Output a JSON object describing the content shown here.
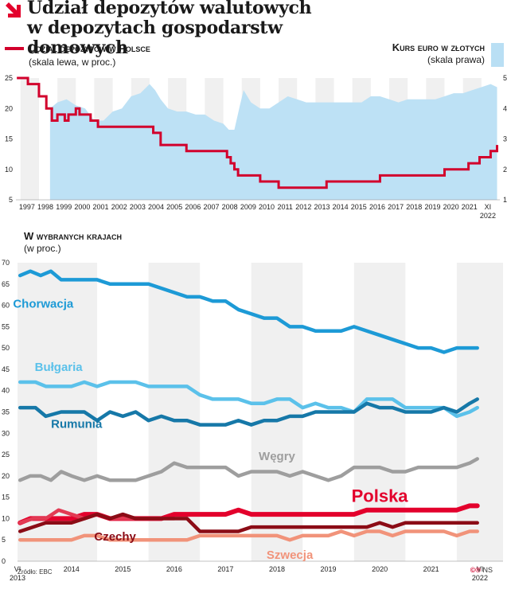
{
  "header": {
    "title_line1": "Udział depozytów walutowych",
    "title_line2": "w depozytach gospodarstw domowych"
  },
  "legend": {
    "left_title": "Udział depozytów w Polsce",
    "left_sub": "(skala lewa, w proc.)",
    "right_title": "Kurs euro w złotych",
    "right_sub": "(skala prawa)"
  },
  "section2": {
    "title": "W wybranych krajach",
    "sub": "(w proc.)"
  },
  "footer": {
    "source": "Źródło: EBC",
    "copyright": "©℗",
    "author": "NS"
  },
  "chart_data": [
    {
      "type": "line+area",
      "title": "Udział depozytów w Polsce vs kurs euro w złotych",
      "ylim_left": [
        5,
        25
      ],
      "yticks_left": [
        "5",
        "10",
        "15",
        "20",
        "25"
      ],
      "ylim_right": [
        1,
        5
      ],
      "yticks_right": [
        "1",
        "2",
        "3",
        "4",
        "5"
      ],
      "xlim": [
        1996.75,
        2023.0
      ],
      "xticks": [
        "1997",
        "1998",
        "1999",
        "2000",
        "2001",
        "2002",
        "2003",
        "2004",
        "2005",
        "2006",
        "2007",
        "2008",
        "2009",
        "2010",
        "2011",
        "2012",
        "2013",
        "2014",
        "2015",
        "2016",
        "2017",
        "2018",
        "2019",
        "2020",
        "2021",
        "XI 2022"
      ],
      "series": [
        {
          "name": "Udział depozytów w Polsce",
          "axis": "left",
          "color": "#d2002c",
          "x": [
            1996.8,
            1997.3,
            1997.4,
            1997.9,
            1998.0,
            1998.3,
            1998.4,
            1998.6,
            1998.7,
            1998.9,
            1999.0,
            1999.2,
            1999.4,
            1999.6,
            1999.8,
            2000.0,
            2000.2,
            2000.5,
            2000.8,
            2001.0,
            2001.2,
            2001.4,
            2001.6,
            2001.8,
            2002.0,
            2002.3,
            2002.6,
            2002.9,
            2003.2,
            2003.5,
            2003.8,
            2004.0,
            2004.2,
            2004.4,
            2004.6,
            2004.8,
            2005.2,
            2005.6,
            2006.0,
            2006.4,
            2006.8,
            2007.2,
            2007.6,
            2008.0,
            2008.2,
            2008.4,
            2008.6,
            2008.8,
            2009.0,
            2009.4,
            2009.8,
            2010.0,
            2010.2,
            2010.4,
            2010.6,
            2010.8,
            2011.0,
            2011.5,
            2012.0,
            2012.5,
            2013.0,
            2013.4,
            2013.6,
            2013.8,
            2014.0,
            2014.5,
            2015.0,
            2015.5,
            2016.0,
            2016.5,
            2017.0,
            2017.5,
            2018.0,
            2018.5,
            2019.0,
            2019.5,
            2020.0,
            2020.5,
            2021.0,
            2021.3,
            2021.6,
            2021.9,
            2022.2,
            2022.5,
            2022.85
          ],
          "values": [
            25,
            25,
            24,
            24,
            22,
            22,
            20,
            20,
            18,
            18,
            19,
            19,
            18,
            19,
            19,
            20,
            19,
            19,
            18,
            18,
            17,
            17,
            17,
            17,
            17,
            17,
            17,
            17,
            17,
            17,
            17,
            17,
            16,
            16,
            14,
            14,
            14,
            14,
            13,
            13,
            13,
            13,
            13,
            13,
            12,
            11,
            10,
            9,
            9,
            9,
            9,
            8,
            8,
            8,
            8,
            8,
            7,
            7,
            7,
            7,
            7,
            7,
            8,
            8,
            8,
            8,
            8,
            8,
            8,
            9,
            9,
            9,
            9,
            9,
            9,
            9,
            10,
            10,
            10,
            11,
            11,
            12,
            12,
            13,
            14
          ]
        },
        {
          "name": "Kurs euro w złotych",
          "axis": "right",
          "color": "#b9dff4",
          "x": [
            1998.6,
            1999.0,
            1999.5,
            2000.0,
            2000.5,
            2001.0,
            2001.5,
            2002.0,
            2002.5,
            2003.0,
            2003.5,
            2004.0,
            2004.3,
            2004.6,
            2005.0,
            2005.5,
            2006.0,
            2006.5,
            2007.0,
            2007.5,
            2008.0,
            2008.3,
            2008.6,
            2008.9,
            2009.1,
            2009.5,
            2010.0,
            2010.5,
            2011.0,
            2011.5,
            2012.0,
            2012.5,
            2013.0,
            2013.5,
            2014.0,
            2014.5,
            2015.0,
            2015.5,
            2016.0,
            2016.5,
            2017.0,
            2017.5,
            2018.0,
            2018.5,
            2019.0,
            2019.5,
            2020.0,
            2020.5,
            2021.0,
            2021.5,
            2022.0,
            2022.5,
            2022.85
          ],
          "values": [
            4.0,
            4.2,
            4.3,
            4.1,
            4.0,
            3.6,
            3.6,
            3.9,
            4.0,
            4.4,
            4.5,
            4.8,
            4.6,
            4.3,
            4.0,
            3.9,
            3.9,
            3.8,
            3.8,
            3.6,
            3.5,
            3.3,
            3.3,
            4.1,
            4.6,
            4.2,
            4.0,
            4.0,
            4.2,
            4.4,
            4.3,
            4.2,
            4.2,
            4.2,
            4.2,
            4.2,
            4.2,
            4.2,
            4.4,
            4.4,
            4.3,
            4.2,
            4.3,
            4.3,
            4.3,
            4.3,
            4.4,
            4.5,
            4.5,
            4.6,
            4.7,
            4.8,
            4.7
          ]
        }
      ]
    },
    {
      "type": "line",
      "title": "W wybranych krajach (w proc.)",
      "ylim": [
        0,
        70
      ],
      "yticks": [
        "0",
        "5",
        "10",
        "15",
        "20",
        "25",
        "30",
        "35",
        "40",
        "45",
        "50",
        "55",
        "60",
        "65",
        "70"
      ],
      "xlim": [
        2013.45,
        2022.9
      ],
      "xticks": [
        {
          "label": "VI",
          "sub": "2013"
        },
        {
          "label": "2014",
          "sub": ""
        },
        {
          "label": "2015",
          "sub": ""
        },
        {
          "label": "2016",
          "sub": ""
        },
        {
          "label": "2017",
          "sub": ""
        },
        {
          "label": "2018",
          "sub": ""
        },
        {
          "label": "2019",
          "sub": ""
        },
        {
          "label": "2020",
          "sub": ""
        },
        {
          "label": "2021",
          "sub": ""
        },
        {
          "label": "VI",
          "sub": "2022"
        }
      ],
      "series": [
        {
          "name": "Chorwacja",
          "color": "#1d9ad6",
          "x": [
            2013.5,
            2013.7,
            2013.9,
            2014.1,
            2014.3,
            2014.5,
            2014.75,
            2015.0,
            2015.25,
            2015.5,
            2015.75,
            2016.0,
            2016.25,
            2016.5,
            2016.75,
            2017.0,
            2017.25,
            2017.5,
            2017.75,
            2018.0,
            2018.25,
            2018.5,
            2018.75,
            2019.0,
            2019.25,
            2019.5,
            2019.75,
            2020.0,
            2020.25,
            2020.5,
            2020.75,
            2021.0,
            2021.25,
            2021.5,
            2021.75,
            2022.0,
            2022.25,
            2022.4
          ],
          "values": [
            67,
            68,
            67,
            68,
            66,
            66,
            66,
            66,
            65,
            65,
            65,
            65,
            64,
            63,
            62,
            62,
            61,
            61,
            59,
            58,
            57,
            57,
            55,
            55,
            54,
            54,
            54,
            55,
            54,
            53,
            52,
            51,
            50,
            50,
            49,
            50,
            50,
            50
          ]
        },
        {
          "name": "Bułgaria",
          "color": "#5bc1ea",
          "x": [
            2013.5,
            2013.8,
            2014.0,
            2014.3,
            2014.5,
            2014.75,
            2015.0,
            2015.25,
            2015.5,
            2015.75,
            2016.0,
            2016.25,
            2016.5,
            2016.75,
            2017.0,
            2017.25,
            2017.5,
            2017.75,
            2018.0,
            2018.25,
            2018.5,
            2018.75,
            2019.0,
            2019.25,
            2019.5,
            2019.75,
            2020.0,
            2020.25,
            2020.5,
            2020.75,
            2021.0,
            2021.25,
            2021.5,
            2021.75,
            2022.0,
            2022.25,
            2022.4
          ],
          "values": [
            42,
            42,
            41,
            41,
            41,
            42,
            41,
            42,
            42,
            42,
            41,
            41,
            41,
            41,
            39,
            38,
            38,
            38,
            37,
            37,
            38,
            38,
            36,
            37,
            36,
            36,
            35,
            38,
            38,
            38,
            36,
            36,
            36,
            36,
            34,
            35,
            36
          ]
        },
        {
          "name": "Rumunia",
          "color": "#1678a8",
          "x": [
            2013.5,
            2013.8,
            2014.0,
            2014.3,
            2014.5,
            2014.75,
            2015.0,
            2015.25,
            2015.5,
            2015.75,
            2016.0,
            2016.25,
            2016.5,
            2016.75,
            2017.0,
            2017.25,
            2017.5,
            2017.75,
            2018.0,
            2018.25,
            2018.5,
            2018.75,
            2019.0,
            2019.25,
            2019.5,
            2019.75,
            2020.0,
            2020.25,
            2020.5,
            2020.75,
            2021.0,
            2021.25,
            2021.5,
            2021.75,
            2022.0,
            2022.25,
            2022.4
          ],
          "values": [
            36,
            36,
            34,
            35,
            35,
            35,
            33,
            35,
            34,
            35,
            33,
            34,
            33,
            33,
            32,
            32,
            32,
            33,
            32,
            33,
            33,
            34,
            34,
            35,
            35,
            35,
            35,
            37,
            36,
            36,
            35,
            35,
            35,
            36,
            35,
            37,
            38
          ]
        },
        {
          "name": "Węgry",
          "color": "#9e9e9e",
          "x": [
            2013.5,
            2013.7,
            2013.9,
            2014.1,
            2014.3,
            2014.5,
            2014.75,
            2015.0,
            2015.25,
            2015.5,
            2015.75,
            2016.0,
            2016.25,
            2016.5,
            2016.75,
            2017.0,
            2017.25,
            2017.5,
            2017.75,
            2018.0,
            2018.25,
            2018.5,
            2018.75,
            2019.0,
            2019.25,
            2019.5,
            2019.75,
            2020.0,
            2020.25,
            2020.5,
            2020.75,
            2021.0,
            2021.25,
            2021.5,
            2021.75,
            2022.0,
            2022.25,
            2022.4
          ],
          "values": [
            19,
            20,
            20,
            19,
            21,
            20,
            19,
            20,
            19,
            19,
            19,
            20,
            21,
            23,
            22,
            22,
            22,
            22,
            20,
            21,
            21,
            21,
            20,
            21,
            20,
            19,
            20,
            22,
            22,
            22,
            21,
            21,
            22,
            22,
            22,
            22,
            23,
            24
          ]
        },
        {
          "name": "Polska",
          "color": "#e3002c",
          "x": [
            2013.5,
            2013.7,
            2013.9,
            2014.1,
            2014.3,
            2014.5,
            2014.75,
            2015.0,
            2015.25,
            2015.5,
            2015.75,
            2016.0,
            2016.25,
            2016.5,
            2016.75,
            2017.0,
            2017.25,
            2017.5,
            2017.75,
            2018.0,
            2018.25,
            2018.5,
            2018.75,
            2019.0,
            2019.25,
            2019.5,
            2019.75,
            2020.0,
            2020.25,
            2020.5,
            2020.75,
            2021.0,
            2021.25,
            2021.5,
            2021.75,
            2022.0,
            2022.25,
            2022.4
          ],
          "values": [
            9,
            10,
            10,
            10,
            10,
            10,
            11,
            11,
            10,
            10,
            10,
            10,
            10,
            11,
            11,
            11,
            11,
            11,
            12,
            11,
            11,
            11,
            11,
            11,
            11,
            11,
            11,
            11,
            12,
            12,
            12,
            12,
            12,
            12,
            12,
            12,
            13,
            13
          ]
        },
        {
          "name": "",
          "color": "#e23b54",
          "x": [
            2013.5,
            2013.75,
            2014.0,
            2014.25,
            2014.5,
            2014.75,
            2015.0,
            2015.25,
            2015.5,
            2015.75,
            2016.0,
            2016.25,
            2016.5
          ],
          "values": [
            9,
            10,
            10,
            12,
            11,
            10,
            11,
            10,
            10,
            10,
            10,
            10,
            10
          ]
        },
        {
          "name": "Czechy",
          "color": "#8b0c16",
          "x": [
            2013.5,
            2013.75,
            2014.0,
            2014.25,
            2014.5,
            2014.75,
            2015.0,
            2015.25,
            2015.5,
            2015.75,
            2016.0,
            2016.25,
            2016.5,
            2016.75,
            2017.0,
            2017.25,
            2017.5,
            2017.75,
            2018.0,
            2018.25,
            2018.5,
            2018.75,
            2019.0,
            2019.25,
            2019.5,
            2019.75,
            2020.0,
            2020.25,
            2020.5,
            2020.75,
            2021.0,
            2021.25,
            2021.5,
            2021.75,
            2022.0,
            2022.25,
            2022.4
          ],
          "values": [
            7,
            8,
            9,
            9,
            9,
            10,
            11,
            10,
            11,
            10,
            10,
            10,
            10,
            10,
            7,
            7,
            7,
            7,
            8,
            8,
            8,
            8,
            8,
            8,
            8,
            8,
            8,
            8,
            9,
            8,
            9,
            9,
            9,
            9,
            9,
            9,
            9
          ]
        },
        {
          "name": "Szwecja",
          "color": "#f1937a",
          "x": [
            2013.5,
            2013.75,
            2014.0,
            2014.25,
            2014.5,
            2014.75,
            2015.0,
            2015.25,
            2015.5,
            2015.75,
            2016.0,
            2016.25,
            2016.5,
            2016.75,
            2017.0,
            2017.25,
            2017.5,
            2017.75,
            2018.0,
            2018.25,
            2018.5,
            2018.75,
            2019.0,
            2019.25,
            2019.5,
            2019.75,
            2020.0,
            2020.25,
            2020.5,
            2020.75,
            2021.0,
            2021.25,
            2021.5,
            2021.75,
            2022.0,
            2022.25,
            2022.4
          ],
          "values": [
            5,
            5,
            5,
            5,
            5,
            6,
            6,
            5,
            5,
            5,
            5,
            5,
            5,
            5,
            6,
            6,
            6,
            6,
            6,
            6,
            6,
            5,
            6,
            6,
            6,
            7,
            6,
            7,
            7,
            6,
            7,
            7,
            7,
            7,
            6,
            7,
            7
          ]
        }
      ],
      "labels": {
        "Chorwacja": "Chorwacja",
        "Bułgaria": "Bułgaria",
        "Rumunia": "Rumunia",
        "Węgry": "Węgry",
        "Polska": "Polska",
        "Czechy": "Czechy",
        "Szwecja": "Szwecja"
      }
    }
  ]
}
